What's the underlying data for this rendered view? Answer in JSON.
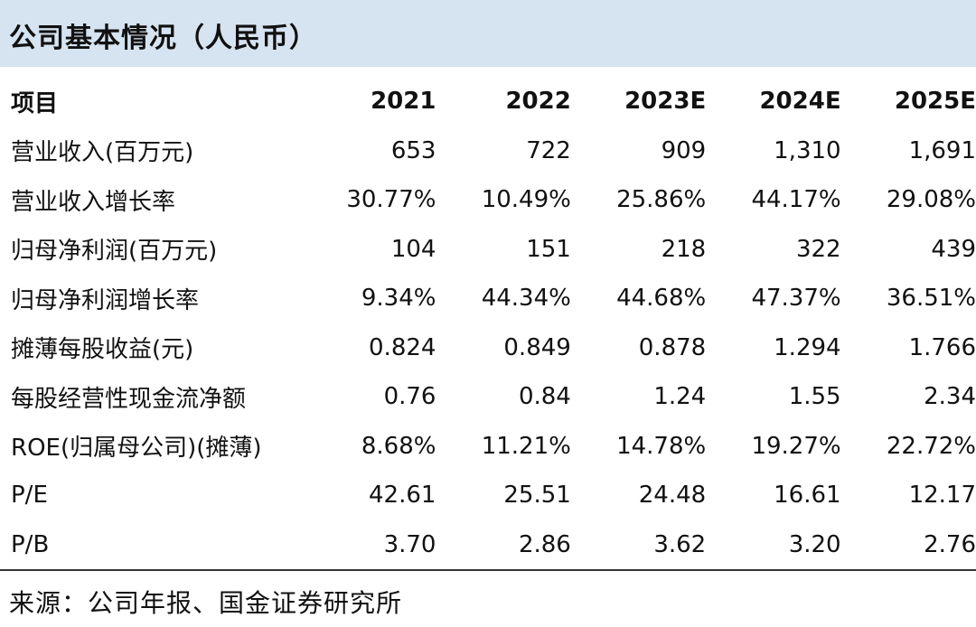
{
  "title": "公司基本情况（人民币）",
  "table": {
    "headers": [
      "项目",
      "2021",
      "2022",
      "2023E",
      "2024E",
      "2025E"
    ],
    "rows": [
      {
        "label": "营业收入(百万元)",
        "values": [
          "653",
          "722",
          "909",
          "1,310",
          "1,691"
        ]
      },
      {
        "label": "营业收入增长率",
        "values": [
          "30.77%",
          "10.49%",
          "25.86%",
          "44.17%",
          "29.08%"
        ]
      },
      {
        "label": "归母净利润(百万元)",
        "values": [
          "104",
          "151",
          "218",
          "322",
          "439"
        ]
      },
      {
        "label": "归母净利润增长率",
        "values": [
          "9.34%",
          "44.34%",
          "44.68%",
          "47.37%",
          "36.51%"
        ]
      },
      {
        "label": "摊薄每股收益(元)",
        "values": [
          "0.824",
          "0.849",
          "0.878",
          "1.294",
          "1.766"
        ]
      },
      {
        "label": "每股经营性现金流净额",
        "values": [
          "0.76",
          "0.84",
          "1.24",
          "1.55",
          "2.34"
        ]
      },
      {
        "label": "ROE(归属母公司)(摊薄)",
        "values": [
          "8.68%",
          "11.21%",
          "14.78%",
          "19.27%",
          "22.72%"
        ]
      },
      {
        "label": "P/E",
        "values": [
          "42.61",
          "25.51",
          "24.48",
          "16.61",
          "12.17"
        ]
      },
      {
        "label": "P/B",
        "values": [
          "3.70",
          "2.86",
          "3.62",
          "3.20",
          "2.76"
        ]
      }
    ]
  },
  "source": "来源：公司年报、国金证券研究所",
  "colors": {
    "title_background": "#d6e3f0",
    "text": "#111111",
    "rule": "#333333"
  }
}
